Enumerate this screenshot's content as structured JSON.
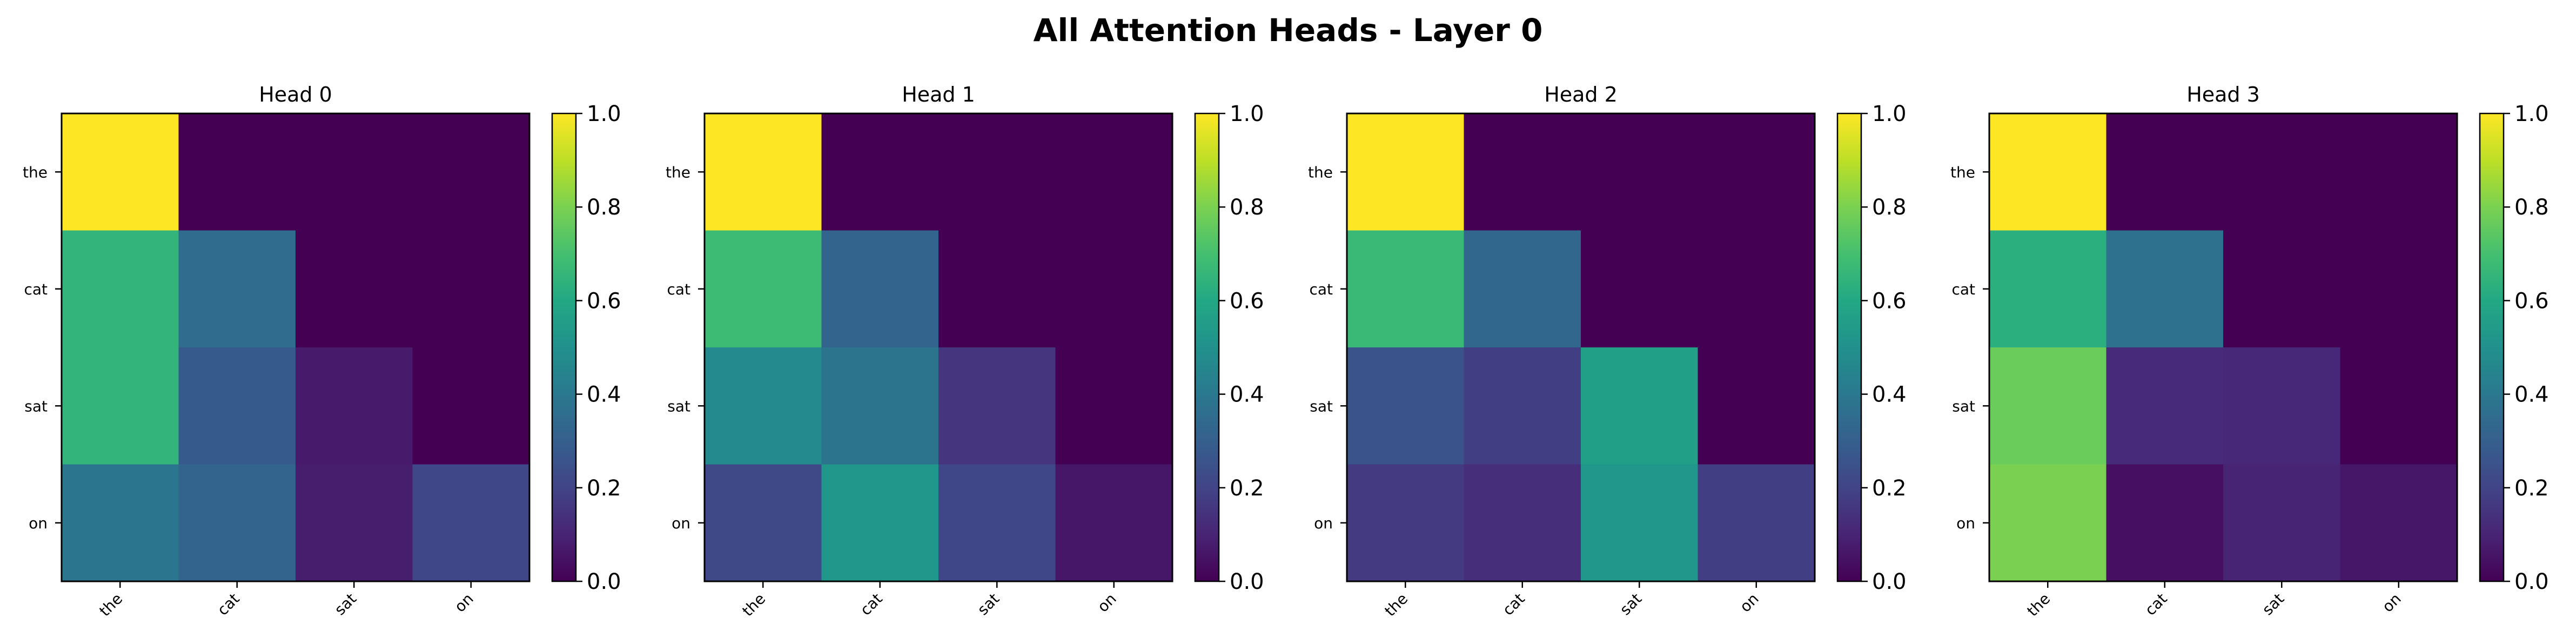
{
  "suptitle": "All Attention Heads - Layer 0",
  "chart_data": [
    {
      "type": "heatmap",
      "title": "Head 0",
      "x_labels": [
        "the",
        "cat",
        "sat",
        "on"
      ],
      "y_labels": [
        "the",
        "cat",
        "sat",
        "on"
      ],
      "values": [
        [
          1.0,
          0.0,
          0.0,
          0.0
        ],
        [
          0.65,
          0.35,
          0.0,
          0.0
        ],
        [
          0.65,
          0.28,
          0.07,
          0.0
        ],
        [
          0.39,
          0.32,
          0.08,
          0.21
        ]
      ],
      "colorbar": {
        "range": [
          0.0,
          1.0
        ],
        "ticks": [
          "0.0",
          "0.2",
          "0.4",
          "0.6",
          "0.8",
          "1.0"
        ],
        "colormap": "viridis"
      }
    },
    {
      "type": "heatmap",
      "title": "Head 1",
      "x_labels": [
        "the",
        "cat",
        "sat",
        "on"
      ],
      "y_labels": [
        "the",
        "cat",
        "sat",
        "on"
      ],
      "values": [
        [
          1.0,
          0.0,
          0.0,
          0.0
        ],
        [
          0.68,
          0.32,
          0.0,
          0.0
        ],
        [
          0.47,
          0.38,
          0.15,
          0.0
        ],
        [
          0.22,
          0.52,
          0.21,
          0.06
        ]
      ],
      "colorbar": {
        "range": [
          0.0,
          1.0
        ],
        "ticks": [
          "0.0",
          "0.2",
          "0.4",
          "0.6",
          "0.8",
          "1.0"
        ],
        "colormap": "viridis"
      }
    },
    {
      "type": "heatmap",
      "title": "Head 2",
      "x_labels": [
        "the",
        "cat",
        "sat",
        "on"
      ],
      "y_labels": [
        "the",
        "cat",
        "sat",
        "on"
      ],
      "values": [
        [
          1.0,
          0.0,
          0.0,
          0.0
        ],
        [
          0.67,
          0.33,
          0.0,
          0.0
        ],
        [
          0.26,
          0.18,
          0.56,
          0.0
        ],
        [
          0.17,
          0.13,
          0.52,
          0.18
        ]
      ],
      "colorbar": {
        "range": [
          0.0,
          1.0
        ],
        "ticks": [
          "0.0",
          "0.2",
          "0.4",
          "0.6",
          "0.8",
          "1.0"
        ],
        "colormap": "viridis"
      }
    },
    {
      "type": "heatmap",
      "title": "Head 3",
      "x_labels": [
        "the",
        "cat",
        "sat",
        "on"
      ],
      "y_labels": [
        "the",
        "cat",
        "sat",
        "on"
      ],
      "values": [
        [
          1.0,
          0.0,
          0.0,
          0.0
        ],
        [
          0.63,
          0.37,
          0.0,
          0.0
        ],
        [
          0.77,
          0.12,
          0.11,
          0.0
        ],
        [
          0.8,
          0.04,
          0.1,
          0.06
        ]
      ],
      "colorbar": {
        "range": [
          0.0,
          1.0
        ],
        "ticks": [
          "0.0",
          "0.2",
          "0.4",
          "0.6",
          "0.8",
          "1.0"
        ],
        "colormap": "viridis"
      }
    }
  ]
}
